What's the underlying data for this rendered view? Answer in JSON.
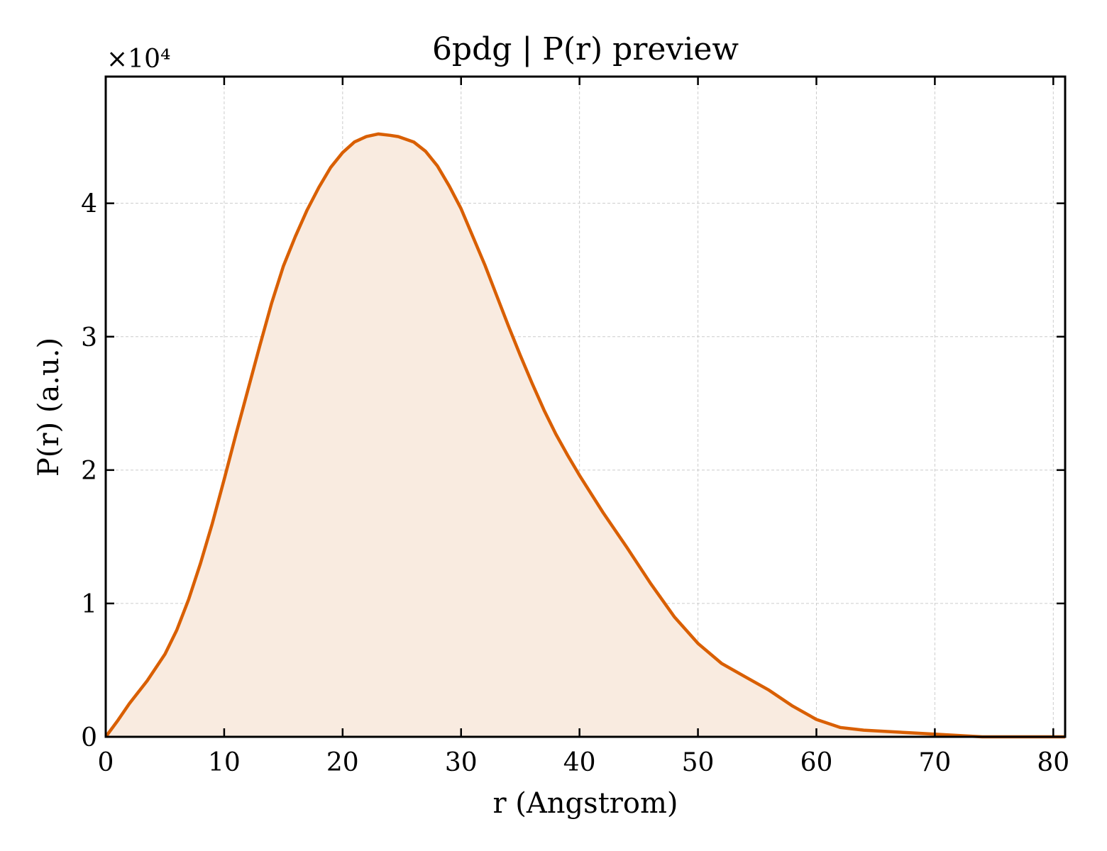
{
  "chart_data": {
    "type": "area",
    "title": "6pdg | P(r) preview",
    "xlabel": "r (Angstrom)",
    "ylabel": "P(r) (a.u.)",
    "y_multiplier": "×10⁴",
    "xlim": [
      0,
      81
    ],
    "ylim": [
      0,
      4.95
    ],
    "xticks": [
      0,
      10,
      20,
      30,
      40,
      50,
      60,
      70,
      80
    ],
    "yticks": [
      0,
      1,
      2,
      3,
      4
    ],
    "grid": true,
    "colors": {
      "line": "#d95f02",
      "fill": "#f9ebe0"
    },
    "series": [
      {
        "x": [
          0,
          1,
          2,
          3.5,
          5,
          6,
          7,
          8,
          9,
          10,
          11,
          12,
          13,
          14,
          15,
          16,
          17,
          18,
          19,
          20,
          21,
          22,
          23,
          24,
          24.7,
          26,
          27,
          28,
          29,
          30,
          31,
          32,
          33,
          34,
          35,
          36,
          37,
          38,
          39,
          40,
          42,
          44,
          46,
          48,
          50,
          52,
          54,
          56,
          58,
          60,
          62,
          64,
          66,
          68,
          70,
          72,
          74,
          76,
          78,
          80,
          81
        ],
        "y": [
          0.0,
          0.12,
          0.25,
          0.42,
          0.62,
          0.8,
          1.03,
          1.3,
          1.6,
          1.93,
          2.27,
          2.6,
          2.93,
          3.25,
          3.53,
          3.75,
          3.95,
          4.12,
          4.27,
          4.38,
          4.46,
          4.5,
          4.52,
          4.51,
          4.5,
          4.46,
          4.39,
          4.28,
          4.13,
          3.96,
          3.75,
          3.54,
          3.31,
          3.08,
          2.86,
          2.65,
          2.45,
          2.27,
          2.11,
          1.96,
          1.68,
          1.42,
          1.15,
          0.9,
          0.7,
          0.55,
          0.45,
          0.35,
          0.23,
          0.13,
          0.07,
          0.05,
          0.04,
          0.03,
          0.02,
          0.01,
          0.0,
          0.0,
          0.0,
          0.0,
          0.0
        ]
      }
    ]
  }
}
